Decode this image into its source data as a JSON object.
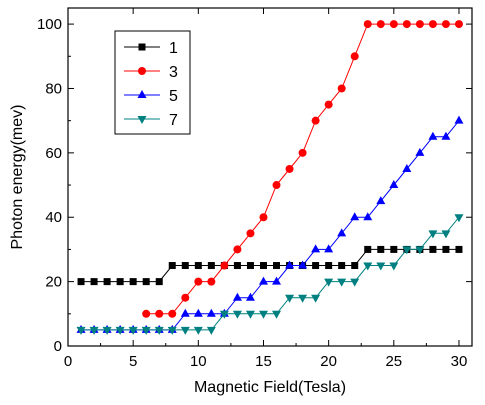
{
  "chart_data": {
    "type": "line",
    "title": "",
    "xlabel": "Magnetic Field(Tesla)",
    "ylabel": "Photon energy(mev)",
    "xlim": [
      0,
      31
    ],
    "ylim": [
      0,
      105
    ],
    "xticks": [
      0,
      5,
      10,
      15,
      20,
      25,
      30
    ],
    "yticks": [
      0,
      20,
      40,
      60,
      80,
      100
    ],
    "grid": false,
    "legend_position": "top-left",
    "series": [
      {
        "name": "1",
        "color": "#000000",
        "marker": "square",
        "x": [
          1,
          2,
          3,
          4,
          5,
          6,
          7,
          8,
          9,
          10,
          11,
          12,
          13,
          14,
          15,
          16,
          17,
          18,
          19,
          20,
          21,
          22,
          23,
          24,
          25,
          26,
          27,
          28,
          29,
          30
        ],
        "y": [
          20,
          20,
          20,
          20,
          20,
          20,
          20,
          25,
          25,
          25,
          25,
          25,
          25,
          25,
          25,
          25,
          25,
          25,
          25,
          25,
          25,
          25,
          30,
          30,
          30,
          30,
          30,
          30,
          30,
          30
        ]
      },
      {
        "name": "3",
        "color": "#ff0000",
        "marker": "circle",
        "x": [
          6,
          7,
          8,
          9,
          10,
          11,
          12,
          13,
          14,
          15,
          16,
          17,
          18,
          19,
          20,
          21,
          22,
          23,
          24,
          25,
          26,
          27,
          28,
          29,
          30
        ],
        "y": [
          10,
          10,
          10,
          15,
          20,
          20,
          25,
          30,
          35,
          40,
          50,
          55,
          60,
          70,
          75,
          80,
          90,
          100,
          100,
          100,
          100,
          100,
          100,
          100,
          100
        ]
      },
      {
        "name": "5",
        "color": "#0000ff",
        "marker": "triangle-up",
        "x": [
          1,
          2,
          3,
          4,
          5,
          6,
          7,
          8,
          9,
          10,
          11,
          12,
          13,
          14,
          15,
          16,
          17,
          18,
          19,
          20,
          21,
          22,
          23,
          24,
          25,
          26,
          27,
          28,
          29,
          30
        ],
        "y": [
          5,
          5,
          5,
          5,
          5,
          5,
          5,
          5,
          10,
          10,
          10,
          10,
          15,
          15,
          20,
          20,
          25,
          25,
          30,
          30,
          35,
          40,
          40,
          45,
          50,
          55,
          60,
          65,
          65,
          70
        ]
      },
      {
        "name": "7",
        "color": "#008080",
        "marker": "triangle-down",
        "x": [
          1,
          2,
          3,
          4,
          5,
          6,
          7,
          8,
          9,
          10,
          11,
          12,
          13,
          14,
          15,
          16,
          17,
          18,
          19,
          20,
          21,
          22,
          23,
          24,
          25,
          26,
          27,
          28,
          29,
          30
        ],
        "y": [
          5,
          5,
          5,
          5,
          5,
          5,
          5,
          5,
          5,
          5,
          5,
          10,
          10,
          10,
          10,
          10,
          15,
          15,
          15,
          20,
          20,
          20,
          25,
          25,
          25,
          30,
          30,
          35,
          35,
          40
        ]
      }
    ]
  }
}
